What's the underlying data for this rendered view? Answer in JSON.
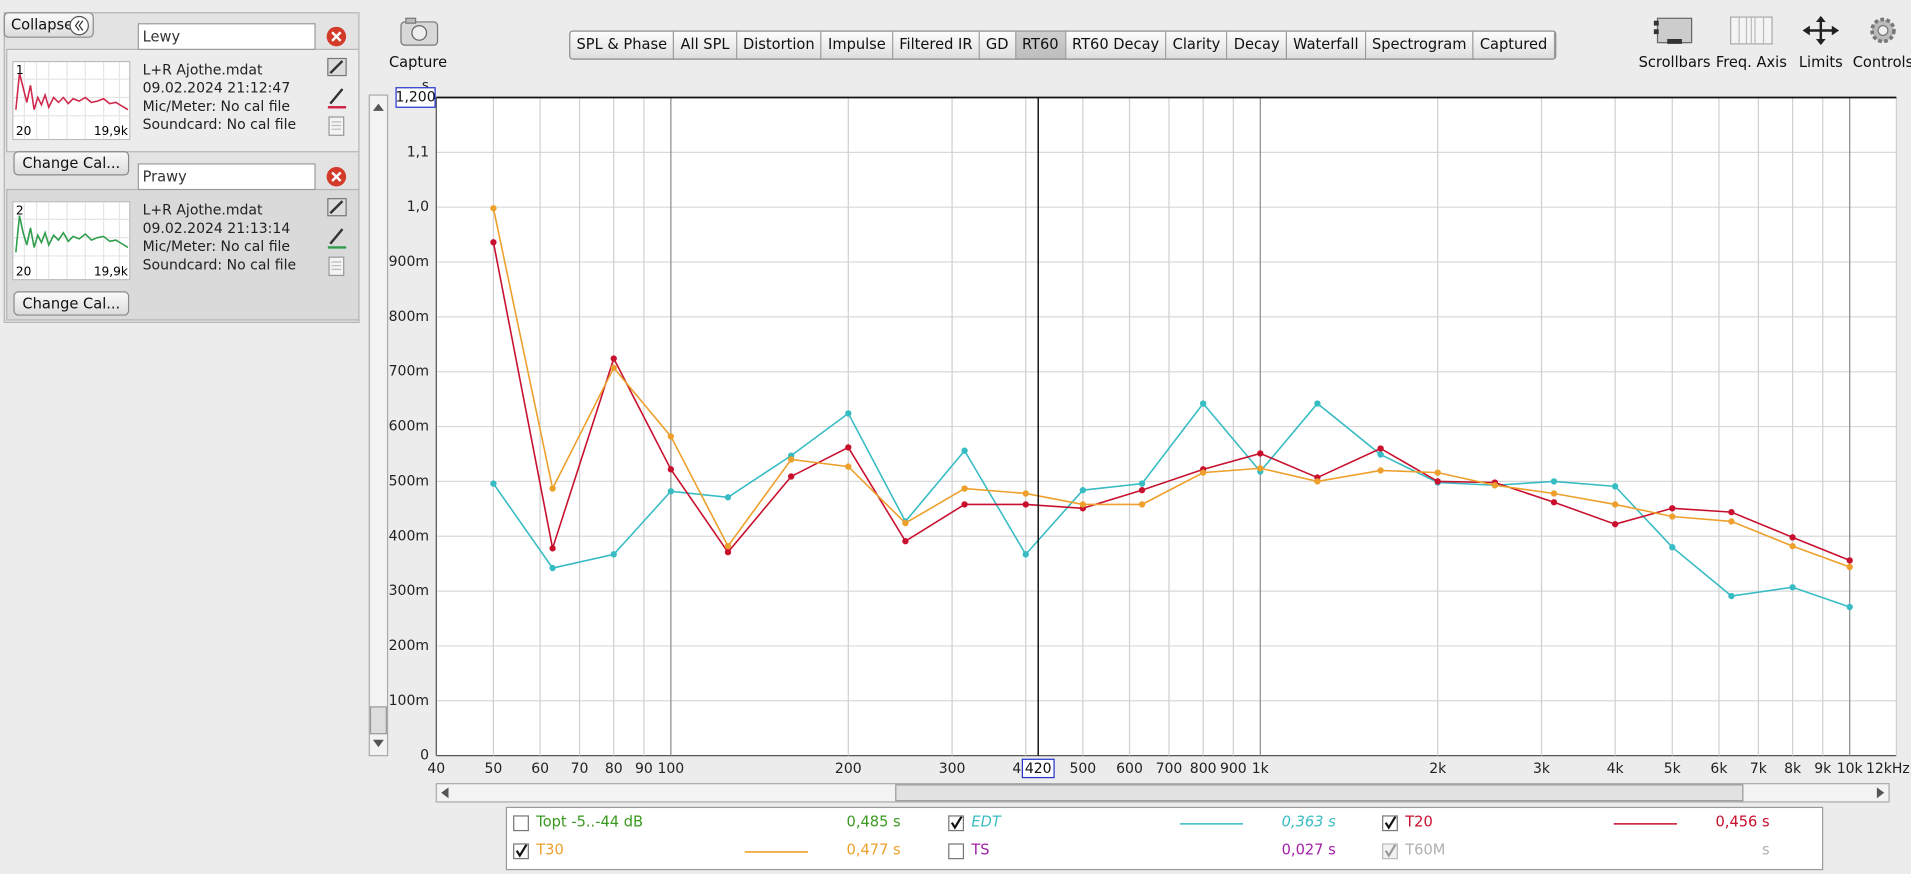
{
  "toolbar": {
    "capture": "Capture",
    "tabs": [
      "SPL & Phase",
      "All SPL",
      "Distortion",
      "Impulse",
      "Filtered IR",
      "GD",
      "RT60",
      "RT60 Decay",
      "Clarity",
      "Decay",
      "Waterfall",
      "Spectrogram",
      "Captured"
    ],
    "active_tab": 6,
    "tools": [
      "Scrollbars",
      "Freq. Axis",
      "Limits",
      "Controls"
    ]
  },
  "measurements": {
    "collapse": "Collapse",
    "items": [
      {
        "index": 1,
        "name": "Lewy",
        "file": "L+R Ajothe.mdat",
        "date": "09.02.2024 21:12:47",
        "mic": "Mic/Meter: No cal file",
        "soundcard": "Soundcard: No cal file",
        "thumb_min": 20,
        "thumb_max": "19,9k",
        "color": "#d0284c",
        "button": "Change Cal..."
      },
      {
        "index": 2,
        "name": "Prawy",
        "file": "L+R Ajothe.mdat",
        "date": "09.02.2024 21:13:14",
        "mic": "Mic/Meter: No cal file",
        "soundcard": "Soundcard: No cal file",
        "thumb_min": 20,
        "thumb_max": "19,9k",
        "color": "#2e9e4a",
        "button": "Change Cal..."
      }
    ]
  },
  "chart_data": {
    "type": "line",
    "xscale": "log",
    "y_unit": "s",
    "x": [
      50,
      63,
      80,
      100,
      125,
      160,
      200,
      250,
      315,
      400,
      500,
      630,
      800,
      1000,
      1250,
      1600,
      2000,
      2500,
      3150,
      4000,
      5000,
      6300,
      8000,
      10000
    ],
    "series": [
      {
        "name": "EDT",
        "color": "#38bcc4",
        "checked": true,
        "readout": "0,363 s",
        "values": [
          0.496,
          0.342,
          0.367,
          0.482,
          0.471,
          0.547,
          0.624,
          0.427,
          0.556,
          0.367,
          0.484,
          0.496,
          0.642,
          0.518,
          0.642,
          0.549,
          0.498,
          0.493,
          0.5,
          0.491,
          0.38,
          0.291,
          0.307,
          0.271
        ]
      },
      {
        "name": "T20",
        "color": "#c8102e",
        "checked": true,
        "readout": "0,456 s",
        "values": [
          0.936,
          0.378,
          0.724,
          0.522,
          0.371,
          0.509,
          0.562,
          0.391,
          0.458,
          0.458,
          0.451,
          0.484,
          0.522,
          0.551,
          0.507,
          0.56,
          0.5,
          0.498,
          0.462,
          0.422,
          0.451,
          0.444,
          0.398,
          0.356
        ]
      },
      {
        "name": "T30",
        "color": "#eda02c",
        "checked": true,
        "readout": "0,477 s",
        "values": [
          0.998,
          0.487,
          0.707,
          0.582,
          0.382,
          0.54,
          0.527,
          0.424,
          0.487,
          0.478,
          0.458,
          0.458,
          0.516,
          0.524,
          0.5,
          0.52,
          0.516,
          0.493,
          0.478,
          0.458,
          0.436,
          0.427,
          0.382,
          0.344
        ]
      }
    ],
    "xlim": [
      40,
      12000
    ],
    "xticks": [
      40,
      50,
      60,
      70,
      80,
      90,
      100,
      200,
      300,
      400,
      500,
      600,
      700,
      800,
      900,
      {
        "value": 1000,
        "label": "1k"
      },
      {
        "value": 2000,
        "label": "2k"
      },
      {
        "value": 3000,
        "label": "3k"
      },
      {
        "value": 4000,
        "label": "4k"
      },
      {
        "value": 5000,
        "label": "5k"
      },
      {
        "value": 6000,
        "label": "6k"
      },
      {
        "value": 7000,
        "label": "7k"
      },
      {
        "value": 8000,
        "label": "8k"
      },
      {
        "value": 9000,
        "label": "9k"
      },
      {
        "value": 10000,
        "label": "10k"
      },
      {
        "value": 12000,
        "label": "12kHz"
      }
    ],
    "ylim": [
      0,
      1.2
    ],
    "yticks": [
      0,
      {
        "value": 0.1,
        "label": "100m"
      },
      {
        "value": 0.2,
        "label": "200m"
      },
      {
        "value": 0.3,
        "label": "300m"
      },
      {
        "value": 0.4,
        "label": "400m"
      },
      {
        "value": 0.5,
        "label": "500m"
      },
      {
        "value": 0.6,
        "label": "600m"
      },
      {
        "value": 0.7,
        "label": "700m"
      },
      {
        "value": 0.8,
        "label": "800m"
      },
      {
        "value": 0.9,
        "label": "900m"
      },
      {
        "value": 1.0,
        "label": "1,0"
      },
      {
        "value": 1.1,
        "label": "1,1"
      }
    ],
    "grid": true,
    "cursor": {
      "x": 420,
      "y": {
        "value": 1.2,
        "label": "1,200"
      }
    }
  },
  "other_measures": [
    {
      "label": "Topt -5..-44 dB",
      "color": "#3a9a20",
      "checked": false,
      "disabled": false,
      "readout": "0,485 s"
    },
    {
      "label": "TS",
      "color": "#a020a8",
      "checked": false,
      "disabled": false,
      "readout": "0,027 s"
    },
    {
      "label": "T60M",
      "color": "#b0b0b0",
      "checked": true,
      "disabled": true,
      "readout": "s"
    }
  ]
}
